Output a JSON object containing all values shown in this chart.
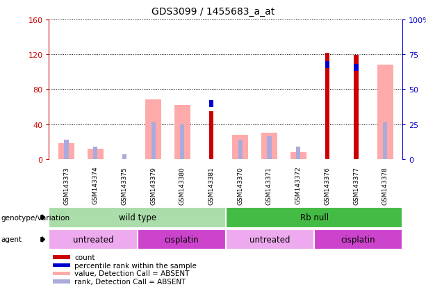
{
  "title": "GDS3099 / 1455683_a_at",
  "samples": [
    "GSM143373",
    "GSM143374",
    "GSM143375",
    "GSM143379",
    "GSM143380",
    "GSM143381",
    "GSM143370",
    "GSM143371",
    "GSM143372",
    "GSM143376",
    "GSM143377",
    "GSM143378"
  ],
  "count": [
    0,
    0,
    0,
    0,
    0,
    55,
    0,
    0,
    0,
    122,
    119,
    0
  ],
  "percentile_rank": [
    0,
    0,
    0,
    0,
    0,
    42,
    0,
    0,
    0,
    70,
    68,
    0
  ],
  "value_absent": [
    18,
    12,
    0,
    68,
    62,
    0,
    28,
    30,
    8,
    0,
    0,
    108
  ],
  "rank_absent": [
    22,
    14,
    5,
    42,
    40,
    0,
    22,
    26,
    14,
    0,
    0,
    42
  ],
  "ylim_left": [
    0,
    160
  ],
  "ylim_right": [
    0,
    100
  ],
  "yticks_left": [
    0,
    40,
    80,
    120,
    160
  ],
  "yticks_right": [
    0,
    25,
    50,
    75,
    100
  ],
  "ytick_labels_right": [
    "0",
    "25",
    "50",
    "75",
    "100%"
  ],
  "color_count": "#cc0000",
  "color_percentile": "#0000cc",
  "color_value_absent": "#ffaaaa",
  "color_rank_absent": "#aaaadd",
  "genotype_groups": [
    {
      "label": "wild type",
      "start": 0,
      "end": 6,
      "color": "#aaddaa"
    },
    {
      "label": "Rb null",
      "start": 6,
      "end": 12,
      "color": "#44bb44"
    }
  ],
  "agent_groups": [
    {
      "label": "untreated",
      "start": 0,
      "end": 3,
      "color": "#eeaaee"
    },
    {
      "label": "cisplatin",
      "start": 3,
      "end": 6,
      "color": "#cc44cc"
    },
    {
      "label": "untreated",
      "start": 6,
      "end": 9,
      "color": "#eeaaee"
    },
    {
      "label": "cisplatin",
      "start": 9,
      "end": 12,
      "color": "#cc44cc"
    }
  ],
  "legend_items": [
    {
      "label": "count",
      "color": "#cc0000"
    },
    {
      "label": "percentile rank within the sample",
      "color": "#0000cc"
    },
    {
      "label": "value, Detection Call = ABSENT",
      "color": "#ffaaaa"
    },
    {
      "label": "rank, Detection Call = ABSENT",
      "color": "#aaaadd"
    }
  ],
  "background_color": "#ffffff",
  "grid_color": "#000000",
  "tick_color_left": "#cc0000",
  "tick_color_right": "#0000cc",
  "axbg_color": "#ffffff",
  "sample_bg_color": "#cccccc"
}
